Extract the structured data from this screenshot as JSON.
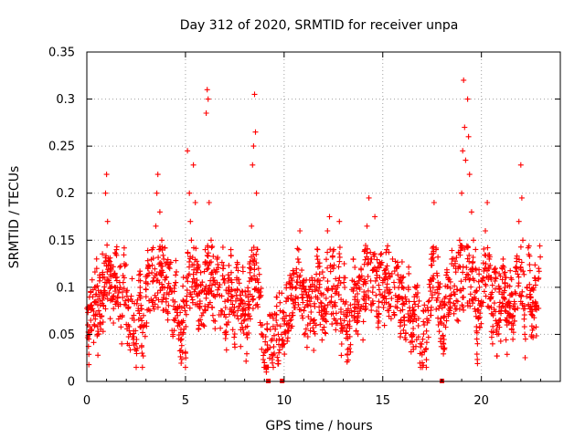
{
  "chart_data": {
    "type": "scatter",
    "title": "Day 312 of 2020, SRMTID for receiver unpa",
    "xlabel": "GPS time / hours",
    "ylabel": "SRMTID / TECUs",
    "xlim": [
      0,
      24
    ],
    "ylim": [
      0,
      0.35
    ],
    "xticks": [
      0,
      5,
      10,
      15,
      20
    ],
    "xtick_labels": [
      "0",
      "5",
      "10",
      "15",
      "20"
    ],
    "yticks": [
      0,
      0.05,
      0.1,
      0.15,
      0.2,
      0.25,
      0.3,
      0.35
    ],
    "ytick_labels": [
      "0",
      "0.05",
      "0.1",
      "0.15",
      "0.2",
      "0.25",
      "0.3",
      "0.35"
    ],
    "grid": true,
    "marker": "+",
    "color": "#ff0000",
    "data_range_hours": [
      0,
      23
    ],
    "zero_markers_x": [
      9.2,
      9.9,
      18.0
    ],
    "series": [
      {
        "name": "SRMTID",
        "points": [
          [
            0.05,
            0.06
          ],
          [
            0.1,
            0.045
          ],
          [
            0.15,
            0.08
          ],
          [
            0.2,
            0.065
          ],
          [
            0.3,
            0.09
          ],
          [
            0.35,
            0.07
          ],
          [
            0.4,
            0.1
          ],
          [
            0.5,
            0.12
          ],
          [
            0.55,
            0.05
          ],
          [
            0.6,
            0.075
          ],
          [
            0.7,
            0.095
          ],
          [
            0.8,
            0.11
          ],
          [
            0.85,
            0.08
          ],
          [
            0.95,
            0.2
          ],
          [
            1.0,
            0.22
          ],
          [
            1.05,
            0.17
          ],
          [
            1.1,
            0.13
          ],
          [
            1.2,
            0.1
          ],
          [
            1.3,
            0.09
          ],
          [
            1.4,
            0.115
          ],
          [
            1.5,
            0.14
          ],
          [
            1.6,
            0.08
          ],
          [
            1.7,
            0.1
          ],
          [
            1.8,
            0.07
          ],
          [
            1.9,
            0.125
          ],
          [
            2.0,
            0.095
          ],
          [
            2.1,
            0.06
          ],
          [
            2.2,
            0.05
          ],
          [
            2.3,
            0.085
          ],
          [
            2.4,
            0.065
          ],
          [
            2.5,
            0.04
          ],
          [
            2.6,
            0.075
          ],
          [
            2.7,
            0.1
          ],
          [
            2.8,
            0.03
          ],
          [
            2.9,
            0.06
          ],
          [
            3.0,
            0.09
          ],
          [
            3.1,
            0.12
          ],
          [
            3.2,
            0.075
          ],
          [
            3.3,
            0.14
          ],
          [
            3.4,
            0.11
          ],
          [
            3.5,
            0.165
          ],
          [
            3.55,
            0.2
          ],
          [
            3.6,
            0.22
          ],
          [
            3.7,
            0.18
          ],
          [
            3.8,
            0.15
          ],
          [
            3.9,
            0.13
          ],
          [
            4.0,
            0.11
          ],
          [
            4.1,
            0.1
          ],
          [
            4.2,
            0.12
          ],
          [
            4.3,
            0.095
          ],
          [
            4.4,
            0.08
          ],
          [
            4.5,
            0.105
          ],
          [
            4.6,
            0.07
          ],
          [
            4.7,
            0.06
          ],
          [
            4.8,
            0.045
          ],
          [
            4.9,
            0.085
          ],
          [
            5.0,
            0.03
          ],
          [
            5.05,
            0.11
          ],
          [
            5.1,
            0.245
          ],
          [
            5.2,
            0.2
          ],
          [
            5.25,
            0.17
          ],
          [
            5.3,
            0.15
          ],
          [
            5.4,
            0.23
          ],
          [
            5.5,
            0.19
          ],
          [
            5.6,
            0.12
          ],
          [
            5.7,
            0.08
          ],
          [
            5.8,
            0.095
          ],
          [
            5.9,
            0.06
          ],
          [
            6.0,
            0.14
          ],
          [
            6.05,
            0.285
          ],
          [
            6.1,
            0.31
          ],
          [
            6.15,
            0.3
          ],
          [
            6.2,
            0.19
          ],
          [
            6.3,
            0.15
          ],
          [
            6.4,
            0.11
          ],
          [
            6.5,
            0.09
          ],
          [
            6.6,
            0.13
          ],
          [
            6.7,
            0.1
          ],
          [
            6.8,
            0.075
          ],
          [
            6.9,
            0.12
          ],
          [
            7.0,
            0.085
          ],
          [
            7.1,
            0.06
          ],
          [
            7.2,
            0.1
          ],
          [
            7.3,
            0.14
          ],
          [
            7.4,
            0.09
          ],
          [
            7.5,
            0.07
          ],
          [
            7.6,
            0.11
          ],
          [
            7.7,
            0.08
          ],
          [
            7.8,
            0.055
          ],
          [
            7.9,
            0.095
          ],
          [
            8.0,
            0.07
          ],
          [
            8.1,
            0.05
          ],
          [
            8.2,
            0.085
          ],
          [
            8.3,
            0.11
          ],
          [
            8.35,
            0.165
          ],
          [
            8.4,
            0.23
          ],
          [
            8.45,
            0.25
          ],
          [
            8.5,
            0.305
          ],
          [
            8.55,
            0.265
          ],
          [
            8.6,
            0.2
          ],
          [
            8.7,
            0.12
          ],
          [
            8.8,
            0.09
          ],
          [
            8.9,
            0.06
          ],
          [
            9.0,
            0.02
          ],
          [
            9.1,
            0.01
          ],
          [
            9.3,
            0.07
          ],
          [
            9.4,
            0.045
          ],
          [
            9.5,
            0.03
          ],
          [
            9.6,
            0.065
          ],
          [
            9.7,
            0.05
          ],
          [
            9.8,
            0.075
          ],
          [
            10.0,
            0.04
          ],
          [
            10.1,
            0.085
          ],
          [
            10.2,
            0.06
          ],
          [
            10.3,
            0.1
          ],
          [
            10.4,
            0.07
          ],
          [
            10.5,
            0.115
          ],
          [
            10.6,
            0.09
          ],
          [
            10.7,
            0.13
          ],
          [
            10.8,
            0.16
          ],
          [
            10.9,
            0.105
          ],
          [
            11.0,
            0.075
          ],
          [
            11.1,
            0.095
          ],
          [
            11.2,
            0.06
          ],
          [
            11.3,
            0.085
          ],
          [
            11.4,
            0.11
          ],
          [
            11.5,
            0.065
          ],
          [
            11.6,
            0.09
          ],
          [
            11.7,
            0.14
          ],
          [
            11.8,
            0.1
          ],
          [
            11.9,
            0.075
          ],
          [
            12.0,
            0.11
          ],
          [
            12.1,
            0.065
          ],
          [
            12.2,
            0.16
          ],
          [
            12.3,
            0.175
          ],
          [
            12.4,
            0.09
          ],
          [
            12.5,
            0.12
          ],
          [
            12.6,
            0.08
          ],
          [
            12.7,
            0.1
          ],
          [
            12.8,
            0.17
          ],
          [
            12.9,
            0.06
          ],
          [
            13.0,
            0.085
          ],
          [
            13.1,
            0.11
          ],
          [
            13.2,
            0.05
          ],
          [
            13.3,
            0.035
          ],
          [
            13.4,
            0.075
          ],
          [
            13.5,
            0.13
          ],
          [
            13.6,
            0.09
          ],
          [
            13.7,
            0.065
          ],
          [
            13.8,
            0.1
          ],
          [
            13.9,
            0.12
          ],
          [
            14.0,
            0.08
          ],
          [
            14.1,
            0.14
          ],
          [
            14.2,
            0.165
          ],
          [
            14.3,
            0.195
          ],
          [
            14.4,
            0.13
          ],
          [
            14.5,
            0.1
          ],
          [
            14.6,
            0.175
          ],
          [
            14.7,
            0.11
          ],
          [
            14.8,
            0.085
          ],
          [
            14.9,
            0.125
          ],
          [
            15.0,
            0.105
          ],
          [
            15.1,
            0.095
          ],
          [
            15.2,
            0.14
          ],
          [
            15.3,
            0.115
          ],
          [
            15.4,
            0.08
          ],
          [
            15.5,
            0.13
          ],
          [
            15.6,
            0.1
          ],
          [
            15.7,
            0.12
          ],
          [
            15.8,
            0.09
          ],
          [
            15.9,
            0.075
          ],
          [
            16.0,
            0.11
          ],
          [
            16.1,
            0.06
          ],
          [
            16.2,
            0.085
          ],
          [
            16.3,
            0.1
          ],
          [
            16.4,
            0.07
          ],
          [
            16.5,
            0.05
          ],
          [
            16.6,
            0.09
          ],
          [
            16.7,
            0.065
          ],
          [
            16.8,
            0.08
          ],
          [
            16.9,
            0.04
          ],
          [
            17.0,
            0.02
          ],
          [
            17.1,
            0.06
          ],
          [
            17.2,
            0.035
          ],
          [
            17.3,
            0.075
          ],
          [
            17.4,
            0.1
          ],
          [
            17.5,
            0.13
          ],
          [
            17.6,
            0.19
          ],
          [
            17.7,
            0.14
          ],
          [
            17.8,
            0.105
          ],
          [
            17.9,
            0.08
          ],
          [
            18.1,
            0.06
          ],
          [
            18.2,
            0.09
          ],
          [
            18.3,
            0.11
          ],
          [
            18.4,
            0.075
          ],
          [
            18.5,
            0.13
          ],
          [
            18.6,
            0.095
          ],
          [
            18.7,
            0.12
          ],
          [
            18.8,
            0.085
          ],
          [
            18.9,
            0.15
          ],
          [
            19.0,
            0.2
          ],
          [
            19.05,
            0.245
          ],
          [
            19.1,
            0.32
          ],
          [
            19.15,
            0.27
          ],
          [
            19.2,
            0.235
          ],
          [
            19.3,
            0.3
          ],
          [
            19.35,
            0.26
          ],
          [
            19.4,
            0.22
          ],
          [
            19.5,
            0.18
          ],
          [
            19.6,
            0.15
          ],
          [
            19.7,
            0.12
          ],
          [
            19.8,
            0.04
          ],
          [
            19.9,
            0.1
          ],
          [
            20.0,
            0.085
          ],
          [
            20.1,
            0.11
          ],
          [
            20.2,
            0.16
          ],
          [
            20.3,
            0.19
          ],
          [
            20.4,
            0.13
          ],
          [
            20.5,
            0.09
          ],
          [
            20.6,
            0.07
          ],
          [
            20.7,
            0.12
          ],
          [
            20.8,
            0.05
          ],
          [
            20.9,
            0.095
          ],
          [
            21.0,
            0.075
          ],
          [
            21.1,
            0.13
          ],
          [
            21.2,
            0.1
          ],
          [
            21.3,
            0.06
          ],
          [
            21.4,
            0.085
          ],
          [
            21.5,
            0.11
          ],
          [
            21.6,
            0.07
          ],
          [
            21.7,
            0.095
          ],
          [
            21.8,
            0.12
          ],
          [
            21.9,
            0.17
          ],
          [
            22.0,
            0.23
          ],
          [
            22.05,
            0.195
          ],
          [
            22.1,
            0.15
          ],
          [
            22.2,
            0.05
          ],
          [
            22.3,
            0.1
          ],
          [
            22.4,
            0.135
          ],
          [
            22.5,
            0.09
          ],
          [
            22.6,
            0.07
          ],
          [
            22.7,
            0.11
          ],
          [
            22.8,
            0.08
          ],
          [
            22.9,
            0.12
          ]
        ]
      }
    ]
  }
}
